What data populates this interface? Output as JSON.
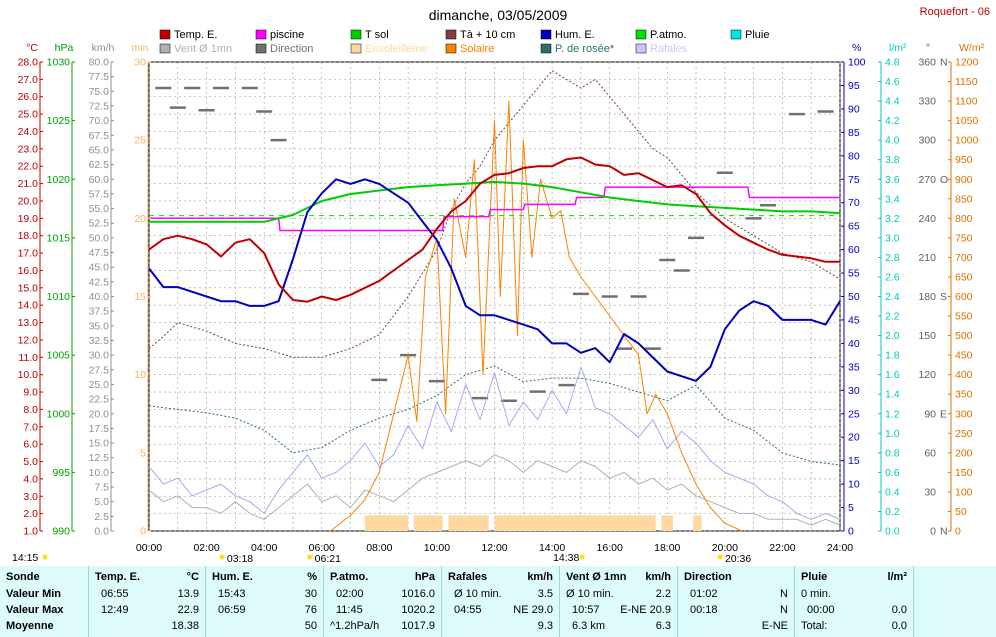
{
  "header": {
    "title": "dimanche, 03/05/2009",
    "station": "Roquefort - 06"
  },
  "legend": [
    {
      "label": "Temp. E.",
      "color": "#c00000"
    },
    {
      "label": "piscine",
      "color": "#ff00ff"
    },
    {
      "label": "T sol",
      "color": "#00cc00"
    },
    {
      "label": "Tà + 10 cm",
      "color": "#804040"
    },
    {
      "label": "Hum. E.",
      "color": "#0000c0"
    },
    {
      "label": "P.atmo.",
      "color": "#00e000"
    },
    {
      "label": "Pluie",
      "color": "#00e8e8"
    },
    {
      "label": "Vent Ø 1mn",
      "color": "#b0b0b0"
    },
    {
      "label": "Direction",
      "color": "#707070"
    },
    {
      "label": "Ensoleilleme",
      "color": "#ffd8a0"
    },
    {
      "label": "Solaire",
      "color": "#ff8000"
    },
    {
      "label": "P. de rosée*",
      "color": "#2e6e6e"
    },
    {
      "label": "Rafales",
      "color": "#c8c8ff"
    }
  ],
  "axes": {
    "temp": {
      "unit": "°C",
      "min": 1,
      "max": 28,
      "step": 1,
      "color": "#c00000"
    },
    "press": {
      "unit": "hPa",
      "min": 990,
      "max": 1030,
      "step": 5,
      "color": "#00a000"
    },
    "wind": {
      "unit": "km/h",
      "min": 0,
      "max": 80,
      "step": 2.5,
      "color": "#909090"
    },
    "minutes": {
      "unit": "min",
      "min": 0,
      "max": 30,
      "step": 5,
      "color": "#ffb060"
    },
    "hum": {
      "unit": "%",
      "min": 0,
      "max": 100,
      "step": 5,
      "color": "#0000c0"
    },
    "rain": {
      "unit": "l/m²",
      "min": 0,
      "max": 4.8,
      "step": 0.2,
      "color": "#00c8c8"
    },
    "dir": {
      "unit": "°",
      "ticks": [
        {
          "v": 0,
          "l": "0",
          "c": "N"
        },
        {
          "v": 30,
          "l": "30",
          "c": ""
        },
        {
          "v": 60,
          "l": "60",
          "c": ""
        },
        {
          "v": 90,
          "l": "90",
          "c": "E"
        },
        {
          "v": 120,
          "l": "120",
          "c": ""
        },
        {
          "v": 150,
          "l": "150",
          "c": ""
        },
        {
          "v": 180,
          "l": "180",
          "c": "S"
        },
        {
          "v": 210,
          "l": "210",
          "c": ""
        },
        {
          "v": 240,
          "l": "240",
          "c": ""
        },
        {
          "v": 270,
          "l": "270",
          "c": "O"
        },
        {
          "v": 300,
          "l": "300",
          "c": ""
        },
        {
          "v": 330,
          "l": "330",
          "c": ""
        },
        {
          "v": 360,
          "l": "360",
          "c": "N"
        }
      ],
      "color": "#606060"
    },
    "solar": {
      "unit": "W/m²",
      "min": 0,
      "max": 1200,
      "step": 50,
      "color": "#e07000"
    },
    "time": {
      "labels": [
        "00:00",
        "02:00",
        "04:00",
        "06:00",
        "08:00",
        "10:00",
        "12:00",
        "14:00",
        "16:00",
        "18:00",
        "20:00",
        "22:00",
        "24:00"
      ]
    }
  },
  "time_marks": [
    {
      "label": "14:15",
      "hour": 0,
      "row": 0
    },
    {
      "label": "03:18",
      "hour": 3.3,
      "row": 1
    },
    {
      "label": "06:21",
      "hour": 6.35,
      "row": 1
    },
    {
      "label": "14:38",
      "hour": 14.63,
      "row": 0
    },
    {
      "label": "20:36",
      "hour": 20.6,
      "row": 1
    }
  ],
  "chart_data": {
    "type": "line",
    "x_unit": "hour",
    "series": [
      {
        "name": "Temp. E.",
        "axis": "temp",
        "color": "#c00000",
        "width": 2,
        "x": [
          0,
          0.5,
          1,
          1.5,
          2,
          2.5,
          3,
          3.5,
          4,
          4.5,
          5,
          5.5,
          6,
          6.5,
          7,
          7.5,
          8,
          8.5,
          9,
          9.5,
          10,
          10.5,
          11,
          11.5,
          12,
          12.5,
          13,
          13.5,
          14,
          14.5,
          15,
          15.5,
          16,
          16.5,
          17,
          17.5,
          18,
          18.5,
          19,
          19.5,
          20,
          20.5,
          21,
          21.5,
          22,
          22.5,
          23,
          23.5,
          24
        ],
        "y": [
          17.2,
          17.8,
          18.0,
          17.8,
          17.5,
          16.8,
          17.6,
          17.8,
          17.0,
          15.2,
          14.3,
          14.2,
          14.5,
          14.3,
          14.6,
          15.0,
          15.4,
          16.0,
          16.6,
          17.2,
          18.4,
          19.4,
          20.0,
          21.0,
          21.5,
          21.6,
          21.9,
          22.0,
          22.0,
          22.4,
          22.5,
          22.1,
          22.0,
          21.5,
          21.6,
          21.2,
          20.8,
          20.9,
          20.4,
          19.3,
          18.6,
          18.0,
          17.6,
          17.2,
          16.9,
          16.8,
          16.7,
          16.5,
          16.5
        ]
      },
      {
        "name": "piscine",
        "axis": "temp",
        "color": "#ff00ff",
        "width": 1.5,
        "step": true,
        "x": [
          0,
          4.5,
          4.55,
          10.2,
          10.25,
          11.8,
          11.85,
          13.0,
          13.05,
          14.8,
          14.85,
          15.8,
          15.85,
          20.8,
          20.85,
          24
        ],
        "y": [
          19.0,
          19.0,
          18.3,
          18.3,
          19.1,
          19.1,
          19.5,
          19.5,
          19.8,
          19.8,
          20.2,
          20.2,
          20.8,
          20.8,
          20.2,
          20.2
        ]
      },
      {
        "name": "T sol",
        "axis": "temp",
        "color": "#00cc00",
        "width": 2,
        "x": [
          0,
          1,
          2,
          3,
          4,
          5,
          6,
          7,
          8,
          9,
          10,
          11,
          12,
          13,
          14,
          15,
          16,
          17,
          18,
          19,
          20,
          21,
          22,
          23,
          24
        ],
        "y": [
          18.8,
          18.8,
          18.8,
          18.8,
          18.8,
          19.2,
          20.0,
          20.4,
          20.6,
          20.8,
          20.9,
          21.0,
          21.1,
          21.0,
          20.8,
          20.5,
          20.2,
          20.0,
          19.8,
          19.7,
          19.6,
          19.5,
          19.4,
          19.4,
          19.3
        ]
      },
      {
        "name": "Tà + 10 cm",
        "axis": "temp",
        "color": "#804040",
        "width": 1,
        "dash": "2,2",
        "x": [
          0,
          0.5,
          1,
          2,
          3,
          4,
          5,
          6,
          7,
          8,
          9,
          10,
          10.5,
          11,
          11.5,
          12,
          12.5,
          13,
          13.5,
          14,
          14.5,
          15,
          15.5,
          16,
          16.5,
          17,
          17.5,
          18,
          18.5,
          19,
          20,
          21,
          22,
          23,
          24
        ],
        "y": [
          11.5,
          12.2,
          13.0,
          12.5,
          11.8,
          11.5,
          11.0,
          11.0,
          11.5,
          12.3,
          14.5,
          17.2,
          19.5,
          21.0,
          22.0,
          23.5,
          24.5,
          25.5,
          26.5,
          27.5,
          27.0,
          26.5,
          27.0,
          26.0,
          25.0,
          24.0,
          23.0,
          22.5,
          21.5,
          20.5,
          19.0,
          18.0,
          17.0,
          16.5,
          15.5
        ]
      },
      {
        "name": "Hum. E.",
        "axis": "hum",
        "color": "#0000c0",
        "width": 2,
        "x": [
          0,
          0.5,
          1,
          1.5,
          2,
          2.5,
          3,
          3.5,
          4,
          4.5,
          5,
          5.5,
          6,
          6.5,
          7,
          7.5,
          8,
          8.5,
          9,
          9.5,
          10,
          10.5,
          11,
          11.5,
          12,
          12.5,
          13,
          13.5,
          14,
          14.5,
          15,
          15.5,
          16,
          16.5,
          17,
          17.5,
          18,
          18.5,
          19,
          19.5,
          20,
          20.5,
          21,
          21.5,
          22,
          22.5,
          23,
          23.5,
          24
        ],
        "y": [
          56,
          52,
          52,
          51,
          50,
          49,
          49,
          48,
          48,
          49,
          58,
          68,
          72,
          75,
          74,
          75,
          74,
          72,
          70,
          66,
          62,
          56,
          48,
          46,
          46,
          45,
          44,
          43,
          40,
          40,
          38,
          39,
          36,
          42,
          40,
          37,
          34,
          33,
          32,
          35,
          43,
          47,
          49,
          48,
          45,
          45,
          45,
          44,
          49
        ]
      },
      {
        "name": "P. de rosée*",
        "axis": "temp",
        "color": "#2e6e6e",
        "width": 1,
        "dash": "2,2",
        "x": [
          0,
          1,
          2,
          3,
          4,
          5,
          6,
          7,
          8,
          9,
          10,
          11,
          12,
          13,
          14,
          15,
          16,
          17,
          18,
          19,
          20,
          21,
          22,
          23,
          24
        ],
        "y": [
          8.2,
          8.0,
          7.8,
          7.5,
          6.8,
          5.5,
          5.8,
          6.8,
          7.5,
          8.0,
          8.8,
          10.0,
          10.5,
          9.6,
          9.8,
          9.8,
          9.5,
          9.0,
          8.5,
          9.4,
          7.5,
          6.8,
          5.5,
          5.0,
          4.8
        ]
      },
      {
        "name": "P.atmo.",
        "axis": "press",
        "color": "#00e000",
        "width": 1,
        "dash": "5,5",
        "x": [
          0,
          24
        ],
        "y": [
          1016.9,
          1016.9
        ]
      },
      {
        "name": "Solaire",
        "axis": "solar",
        "color": "#ff8000",
        "width": 1,
        "x": [
          6.3,
          7,
          7.5,
          8,
          8.5,
          9,
          9.3,
          9.6,
          10,
          10.3,
          10.6,
          11,
          11.3,
          11.6,
          12,
          12.2,
          12.5,
          12.8,
          13,
          13.3,
          13.6,
          14,
          14.3,
          14.6,
          15,
          15.5,
          16,
          16.5,
          17,
          17.3,
          17.6,
          18,
          18.5,
          19,
          19.5,
          20,
          20.6
        ],
        "y": [
          0,
          40,
          80,
          150,
          300,
          450,
          280,
          650,
          750,
          300,
          850,
          700,
          950,
          400,
          1050,
          600,
          1100,
          500,
          1000,
          700,
          900,
          800,
          820,
          700,
          650,
          600,
          550,
          500,
          450,
          300,
          350,
          300,
          200,
          120,
          60,
          20,
          0
        ]
      },
      {
        "name": "Vent Ø 1mn",
        "axis": "wind",
        "color": "#b0b0b0",
        "width": 1,
        "x": [
          0,
          0.5,
          1,
          1.5,
          2,
          2.5,
          3,
          3.5,
          4,
          4.5,
          5,
          5.5,
          6,
          6.5,
          7,
          7.5,
          8,
          8.5,
          9,
          9.5,
          10,
          10.5,
          11,
          11.5,
          12,
          12.5,
          13,
          13.5,
          14,
          14.5,
          15,
          15.5,
          16,
          16.5,
          17,
          17.5,
          18,
          18.5,
          19,
          19.5,
          20,
          20.5,
          21,
          21.5,
          22,
          22.5,
          23,
          23.5,
          24
        ],
        "y": [
          7,
          5,
          6,
          4,
          4,
          3,
          5,
          3,
          2,
          4,
          6,
          8,
          5,
          6,
          4,
          7,
          6,
          5,
          7,
          9,
          10,
          11,
          12,
          11,
          13,
          12,
          10,
          12,
          11,
          10,
          12,
          11,
          9,
          10,
          8,
          9,
          7,
          8,
          6,
          5,
          4,
          3,
          3,
          2,
          2,
          2,
          1,
          2,
          1
        ]
      },
      {
        "name": "Rafales",
        "axis": "wind",
        "color": "#a8a8f8",
        "width": 1,
        "x": [
          0,
          0.5,
          1,
          1.5,
          2,
          2.5,
          3,
          3.5,
          4,
          4.5,
          5,
          5.5,
          6,
          6.5,
          7,
          7.5,
          8,
          8.5,
          9,
          9.5,
          10,
          10.5,
          11,
          11.5,
          12,
          12.5,
          13,
          13.5,
          14,
          14.5,
          15,
          15.5,
          16,
          16.5,
          17,
          17.5,
          18,
          18.5,
          19,
          19.5,
          20,
          20.5,
          21,
          21.5,
          22,
          22.5,
          23,
          23.5,
          24
        ],
        "y": [
          11,
          8,
          9,
          6,
          7,
          8,
          6,
          5,
          3,
          7,
          10,
          13,
          9,
          10,
          12,
          15,
          11,
          13,
          18,
          14,
          22,
          17,
          25,
          19,
          27,
          18,
          22,
          19,
          24,
          20,
          28,
          21,
          20,
          18,
          16,
          19,
          14,
          17,
          15,
          12,
          10,
          9,
          8,
          6,
          5,
          3,
          2,
          3,
          2
        ]
      }
    ],
    "sunshine_minutes": {
      "axis": "minutes",
      "color": "#ffd8a0",
      "bars": [
        [
          7.5,
          9.0,
          1
        ],
        [
          9.2,
          10.2,
          1
        ],
        [
          10.4,
          11.8,
          1
        ],
        [
          12.0,
          17.6,
          1
        ],
        [
          17.8,
          18.2,
          1
        ],
        [
          18.9,
          19.2,
          1
        ]
      ]
    },
    "direction_marks": {
      "axis": "dir",
      "color": "#707070",
      "points": [
        [
          0.5,
          340
        ],
        [
          1.5,
          340
        ],
        [
          2.5,
          340
        ],
        [
          3.5,
          340
        ],
        [
          4,
          322
        ],
        [
          4.5,
          300
        ],
        [
          1,
          325
        ],
        [
          2,
          323
        ],
        [
          8,
          116
        ],
        [
          9,
          135
        ],
        [
          10,
          115
        ],
        [
          11.5,
          102
        ],
        [
          12.5,
          100
        ],
        [
          13.5,
          107
        ],
        [
          14.5,
          112
        ],
        [
          15,
          182
        ],
        [
          16,
          180
        ],
        [
          16.5,
          140
        ],
        [
          17,
          180
        ],
        [
          17.5,
          140
        ],
        [
          18,
          208
        ],
        [
          18.5,
          200
        ],
        [
          19,
          225
        ],
        [
          20,
          275
        ],
        [
          21,
          240
        ],
        [
          21.5,
          250
        ],
        [
          22.5,
          320
        ],
        [
          23.5,
          322
        ]
      ]
    },
    "xlim": [
      0,
      24
    ],
    "grid": true
  },
  "stats": {
    "sonde": {
      "head": "Sonde",
      "rows": [
        "Valeur Min",
        "Valeur Max",
        "Moyenne"
      ]
    },
    "temp": {
      "head": "Temp. E.",
      "unit": "°C",
      "r1a": "06:55",
      "r1b": "13.9",
      "r2a": "12:49",
      "r2b": "22.9",
      "r3a": "",
      "r3b": "18.38"
    },
    "hum": {
      "head": "Hum. E.",
      "unit": "%",
      "r1a": "15:43",
      "r1b": "30",
      "r2a": "06:59",
      "r2b": "76",
      "r3a": "",
      "r3b": "50"
    },
    "press": {
      "head": "P.atmo.",
      "unit": "hPa",
      "r1a": "02:00",
      "r1b": "1016.0",
      "r2a": "11:45",
      "r2b": "1020.2",
      "r3a": "^1.2hPa/h",
      "r3b": "1017.9"
    },
    "gust": {
      "head": "Rafales",
      "unit": "km/h",
      "r1a": "Ø 10 min.",
      "r1b": "3.5",
      "r2a": "04:55",
      "r2b": "NE 29.0",
      "r3a": "",
      "r3b": "9.3"
    },
    "wind": {
      "head": "Vent Ø 1mn",
      "unit": "km/h",
      "r1a": "Ø 10 min.",
      "r1b": "2.2",
      "r2a": "10:57",
      "r2b": "E-NE 20.9",
      "r3a": "6.3 km",
      "r3b": "6.3"
    },
    "dir": {
      "head": "Direction",
      "unit": "",
      "r1a": "01:02",
      "r1b": "N",
      "r2a": "00:18",
      "r2b": "N",
      "r3a": "",
      "r3b": "E-NE"
    },
    "rain": {
      "head": "Pluie",
      "unit": "l/m²",
      "r1a": "0 min.",
      "r1b": "",
      "r2a": "00:00",
      "r2b": "0.0",
      "r3a": "Total:",
      "r3b": "0.0"
    }
  }
}
